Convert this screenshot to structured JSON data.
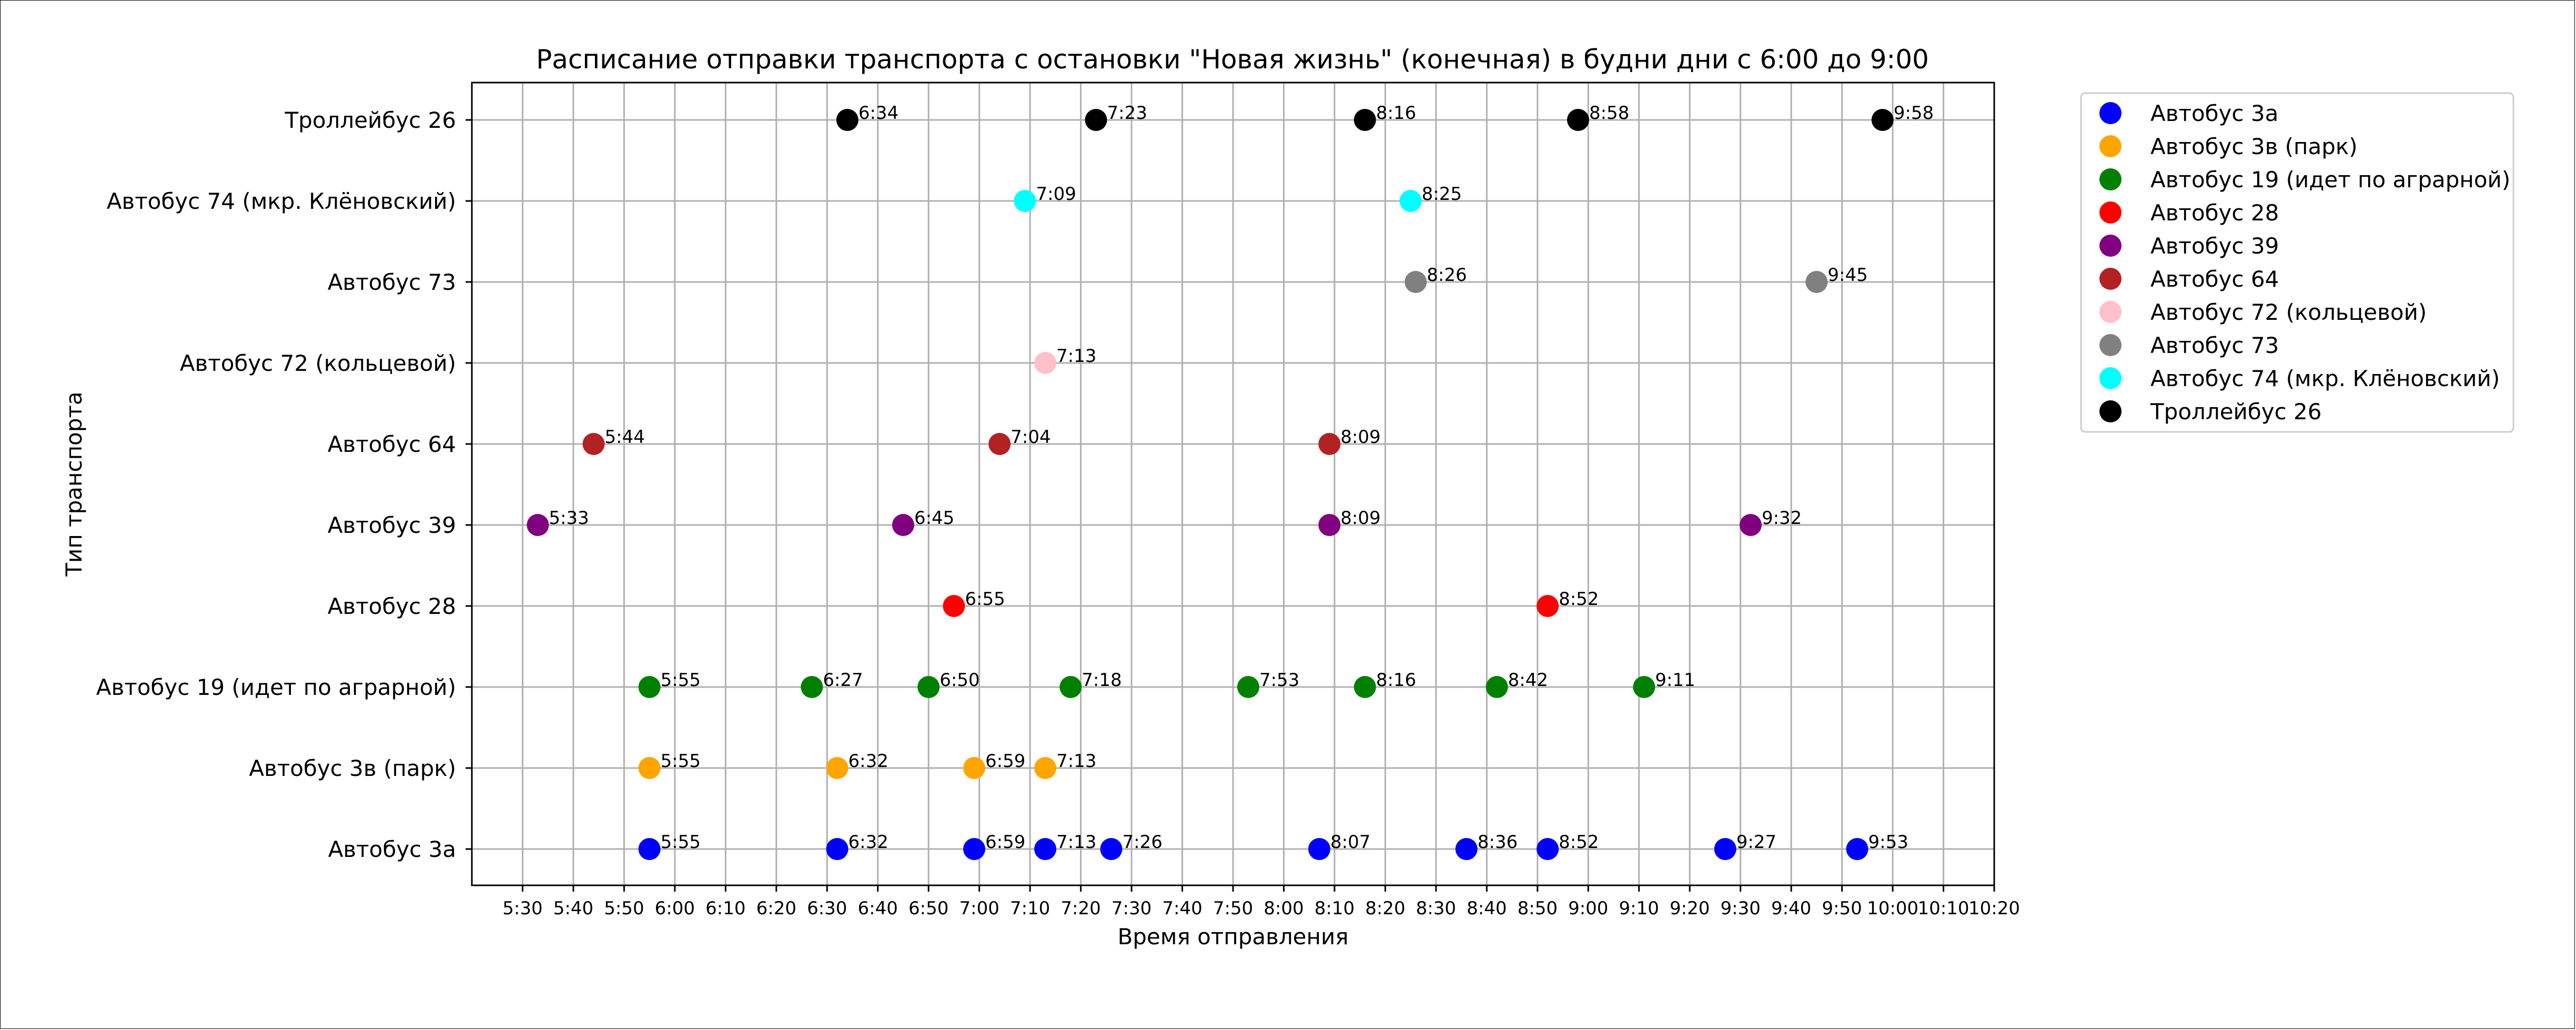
{
  "chart_data": {
    "type": "scatter",
    "title": "Расписание отправки транспорта с остановки \"Новая жизнь\" (конечная) в будни дни с 6:00 до 9:00",
    "xlabel": "Время отправления",
    "ylabel": "Тип транспорта",
    "x_unit": "time of day (H:MM)",
    "xlim": [
      "5:20",
      "10:20"
    ],
    "x_ticks": [
      "5:30",
      "5:40",
      "5:50",
      "6:00",
      "6:10",
      "6:20",
      "6:30",
      "6:40",
      "6:50",
      "7:00",
      "7:10",
      "7:20",
      "7:30",
      "7:40",
      "7:50",
      "8:00",
      "8:10",
      "8:20",
      "8:30",
      "8:40",
      "8:50",
      "9:00",
      "9:10",
      "9:20",
      "9:30",
      "9:40",
      "9:50",
      "10:00",
      "10:10",
      "10:20"
    ],
    "categories": [
      "Автобус 3а",
      "Автобус 3в (парк)",
      "Автобус 19 (идет по аграрной)",
      "Автобус 28",
      "Автобус 39",
      "Автобус 64",
      "Автобус 72 (кольцевой)",
      "Автобус 73",
      "Автобус 74 (мкр. Клёновский)",
      "Троллейбус 26"
    ],
    "grid": true,
    "legend_position": "outside-right-top",
    "series": [
      {
        "name": "Автобус 3а",
        "color": "#0000ff",
        "times": [
          "5:55",
          "6:32",
          "6:59",
          "7:13",
          "7:26",
          "8:07",
          "8:36",
          "8:52",
          "9:27",
          "9:53"
        ]
      },
      {
        "name": "Автобус 3в (парк)",
        "color": "#ffa500",
        "times": [
          "5:55",
          "6:32",
          "6:59",
          "7:13"
        ]
      },
      {
        "name": "Автобус 19 (идет по аграрной)",
        "color": "#008000",
        "times": [
          "5:55",
          "6:27",
          "6:50",
          "7:18",
          "7:53",
          "8:16",
          "8:42",
          "9:11"
        ]
      },
      {
        "name": "Автобус 28",
        "color": "#ff0000",
        "times": [
          "6:55",
          "8:52"
        ]
      },
      {
        "name": "Автобус 39",
        "color": "#800080",
        "times": [
          "5:33",
          "6:45",
          "8:09",
          "9:32"
        ]
      },
      {
        "name": "Автобус 64",
        "color": "#b22222",
        "times": [
          "5:44",
          "7:04",
          "8:09"
        ]
      },
      {
        "name": "Автобус 72 (кольцевой)",
        "color": "#ffc0cb",
        "times": [
          "7:13"
        ]
      },
      {
        "name": "Автобус 73",
        "color": "#808080",
        "times": [
          "8:26",
          "9:45"
        ]
      },
      {
        "name": "Автобус 74 (мкр. Клёновский)",
        "color": "#00ffff",
        "times": [
          "7:09",
          "8:25"
        ]
      },
      {
        "name": "Троллейбус 26",
        "color": "#000000",
        "times": [
          "6:34",
          "7:23",
          "8:16",
          "8:58",
          "9:58"
        ]
      }
    ]
  }
}
